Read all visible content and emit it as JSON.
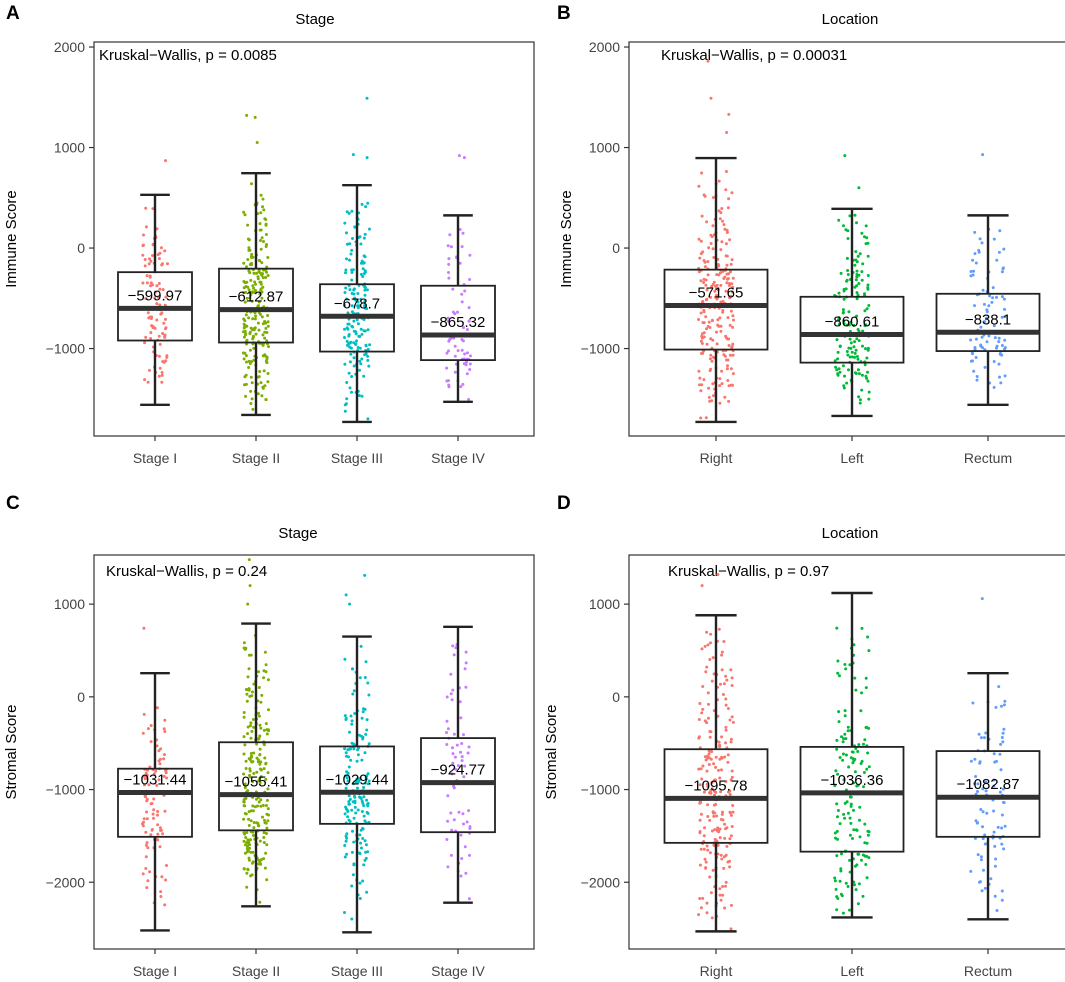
{
  "chart_data": [
    {
      "panel": "A",
      "type": "box",
      "title": "Stage",
      "ylabel": "Immune Score",
      "ylim": [
        -1870,
        2050
      ],
      "yticks": [
        -1000,
        0,
        1000,
        2000
      ],
      "annotation": "Kruskal−Wallis, p = 0.0085",
      "categories": [
        "Stage I",
        "Stage II",
        "Stage III",
        "Stage IV"
      ],
      "colors": [
        "#F8766D",
        "#7CAE00",
        "#00BFC4",
        "#C77CFF"
      ],
      "series": [
        {
          "name": "Stage I",
          "q1": -920,
          "median": -599.97,
          "q3": -240,
          "whisker_low": -1560,
          "whisker_high": 530,
          "median_label": "−599.97",
          "n_points": 100,
          "outliers": [
            870
          ]
        },
        {
          "name": "Stage II",
          "q1": -940,
          "median": -612.87,
          "q3": -205,
          "whisker_low": -1660,
          "whisker_high": 745,
          "median_label": "−612.87",
          "n_points": 230,
          "outliers": [
            1050,
            1300,
            1320
          ]
        },
        {
          "name": "Stage III",
          "q1": -1030,
          "median": -678.7,
          "q3": -360,
          "whisker_low": -1730,
          "whisker_high": 625,
          "median_label": "−678.7",
          "n_points": 170,
          "outliers": [
            900,
            930,
            1490
          ]
        },
        {
          "name": "Stage IV",
          "q1": -1115,
          "median": -865.32,
          "q3": -375,
          "whisker_low": -1530,
          "whisker_high": 325,
          "median_label": "−865.32",
          "n_points": 70,
          "outliers": [
            900,
            920
          ]
        }
      ]
    },
    {
      "panel": "B",
      "type": "box",
      "title": "Location",
      "ylabel": "Immune Score",
      "ylim": [
        -1870,
        2050
      ],
      "yticks": [
        -1000,
        0,
        1000,
        2000
      ],
      "annotation": "Kruskal−Wallis, p = 0.00031",
      "categories": [
        "Right",
        "Left",
        "Rectum"
      ],
      "colors": [
        "#F8766D",
        "#00BA38",
        "#619CFF"
      ],
      "series": [
        {
          "name": "Right",
          "q1": -1010,
          "median": -571.65,
          "q3": -215,
          "whisker_low": -1730,
          "whisker_high": 895,
          "median_label": "−571.65",
          "n_points": 230,
          "outliers": [
            1150,
            1330,
            1490,
            1860
          ]
        },
        {
          "name": "Left",
          "q1": -1140,
          "median": -860.61,
          "q3": -485,
          "whisker_low": -1670,
          "whisker_high": 390,
          "median_label": "−860.61",
          "n_points": 150,
          "outliers": [
            600,
            920
          ]
        },
        {
          "name": "Rectum",
          "q1": -1025,
          "median": -838.1,
          "q3": -455,
          "whisker_low": -1560,
          "whisker_high": 325,
          "median_label": "−838.1",
          "n_points": 90,
          "outliers": [
            930
          ]
        }
      ]
    },
    {
      "panel": "C",
      "type": "box",
      "title": "Stage",
      "ylabel": "Stromal Score",
      "ylim": [
        -2720,
        1530
      ],
      "yticks": [
        -2000,
        -1000,
        0,
        1000
      ],
      "annotation": "Kruskal−Wallis, p = 0.24",
      "categories": [
        "Stage I",
        "Stage II",
        "Stage III",
        "Stage IV"
      ],
      "colors": [
        "#F8766D",
        "#7CAE00",
        "#00BFC4",
        "#C77CFF"
      ],
      "series": [
        {
          "name": "Stage I",
          "q1": -1510,
          "median": -1031.44,
          "q3": -775,
          "whisker_low": -2520,
          "whisker_high": 255,
          "median_label": "−1031.44",
          "n_points": 100,
          "outliers": [
            740
          ]
        },
        {
          "name": "Stage II",
          "q1": -1440,
          "median": -1055.41,
          "q3": -490,
          "whisker_low": -2260,
          "whisker_high": 790,
          "median_label": "−1055.41",
          "n_points": 230,
          "outliers": [
            1000,
            1200,
            1480
          ]
        },
        {
          "name": "Stage III",
          "q1": -1370,
          "median": -1029.44,
          "q3": -535,
          "whisker_low": -2540,
          "whisker_high": 650,
          "median_label": "−1029.44",
          "n_points": 170,
          "outliers": [
            1000,
            1100,
            1310
          ]
        },
        {
          "name": "Stage IV",
          "q1": -1460,
          "median": -924.77,
          "q3": -445,
          "whisker_low": -2220,
          "whisker_high": 755,
          "median_label": "−924.77",
          "n_points": 70,
          "outliers": []
        }
      ]
    },
    {
      "panel": "D",
      "type": "box",
      "title": "Location",
      "ylabel": "Stromal Score",
      "ylim": [
        -2720,
        1530
      ],
      "yticks": [
        -2000,
        -1000,
        0,
        1000
      ],
      "annotation": "Kruskal−Wallis, p = 0.97",
      "categories": [
        "Right",
        "Left",
        "Rectum"
      ],
      "colors": [
        "#F8766D",
        "#00BA38",
        "#619CFF"
      ],
      "series": [
        {
          "name": "Right",
          "q1": -1575,
          "median": -1095.78,
          "q3": -565,
          "whisker_low": -2530,
          "whisker_high": 880,
          "median_label": "−1095.78",
          "n_points": 230,
          "outliers": [
            1200,
            1320
          ]
        },
        {
          "name": "Left",
          "q1": -1670,
          "median": -1036.36,
          "q3": -540,
          "whisker_low": -2380,
          "whisker_high": 1120,
          "median_label": "−1036.36",
          "n_points": 150,
          "outliers": []
        },
        {
          "name": "Rectum",
          "q1": -1510,
          "median": -1082.87,
          "q3": -585,
          "whisker_low": -2400,
          "whisker_high": 255,
          "median_label": "−1082.87",
          "n_points": 90,
          "outliers": [
            1060
          ]
        }
      ]
    }
  ]
}
